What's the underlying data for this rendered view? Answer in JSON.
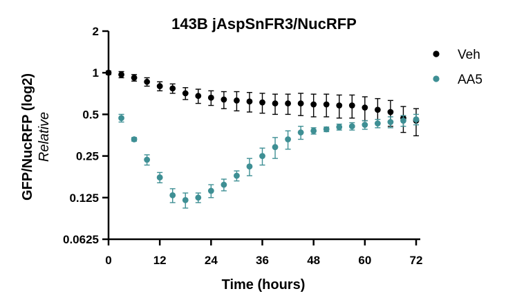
{
  "chart_data": {
    "type": "scatter",
    "title": "143B jAspSnFR3/NucRFP",
    "xlabel": "Time (hours)",
    "ylabel": "GFP/NucRFP (log2)",
    "ylabel_sub": "Relative",
    "x_ticks": [
      "0",
      "12",
      "24",
      "36",
      "48",
      "60",
      "72"
    ],
    "y_ticks": [
      "0.0625",
      "0.125",
      "0.25",
      "0.5",
      "1",
      "2"
    ],
    "xlim": [
      0,
      72
    ],
    "ylim": [
      0.0625,
      2
    ],
    "y_scale": "log2",
    "grid": false,
    "legend_position": "right",
    "x": [
      0,
      3,
      6,
      9,
      12,
      15,
      18,
      21,
      24,
      27,
      30,
      33,
      36,
      39,
      42,
      45,
      48,
      51,
      54,
      57,
      60,
      63,
      66,
      69,
      72
    ],
    "series": [
      {
        "name": "Veh",
        "color": "#000000",
        "x": [
          0,
          3,
          6,
          9,
          12,
          15,
          18,
          21,
          24,
          27,
          30,
          33,
          36,
          39,
          42,
          45,
          48,
          51,
          54,
          57,
          60,
          63,
          66,
          69,
          72
        ],
        "values": [
          1.0,
          0.97,
          0.92,
          0.86,
          0.8,
          0.77,
          0.71,
          0.68,
          0.66,
          0.64,
          0.63,
          0.62,
          0.61,
          0.6,
          0.6,
          0.6,
          0.59,
          0.59,
          0.58,
          0.58,
          0.56,
          0.54,
          0.52,
          0.47,
          0.45
        ],
        "err": [
          0.03,
          0.05,
          0.05,
          0.06,
          0.06,
          0.06,
          0.07,
          0.08,
          0.08,
          0.09,
          0.1,
          0.1,
          0.1,
          0.1,
          0.1,
          0.11,
          0.11,
          0.11,
          0.11,
          0.11,
          0.11,
          0.11,
          0.11,
          0.1,
          0.1
        ]
      },
      {
        "name": "AA5",
        "color": "#3e8f94",
        "x": [
          3,
          6,
          9,
          12,
          15,
          18,
          21,
          24,
          27,
          30,
          33,
          36,
          39,
          42,
          45,
          48,
          51,
          54,
          57,
          60,
          63,
          66,
          69,
          72
        ],
        "values": [
          0.47,
          0.33,
          0.235,
          0.175,
          0.13,
          0.12,
          0.125,
          0.14,
          0.155,
          0.18,
          0.21,
          0.25,
          0.29,
          0.33,
          0.37,
          0.38,
          0.39,
          0.405,
          0.41,
          0.42,
          0.43,
          0.44,
          0.45,
          0.46
        ],
        "err": [
          0.03,
          0.01,
          0.02,
          0.015,
          0.015,
          0.015,
          0.01,
          0.015,
          0.015,
          0.015,
          0.03,
          0.035,
          0.05,
          0.05,
          0.04,
          0.02,
          0.015,
          0.02,
          0.025,
          0.03,
          0.03,
          0.04,
          0.04,
          0.04
        ]
      }
    ]
  }
}
